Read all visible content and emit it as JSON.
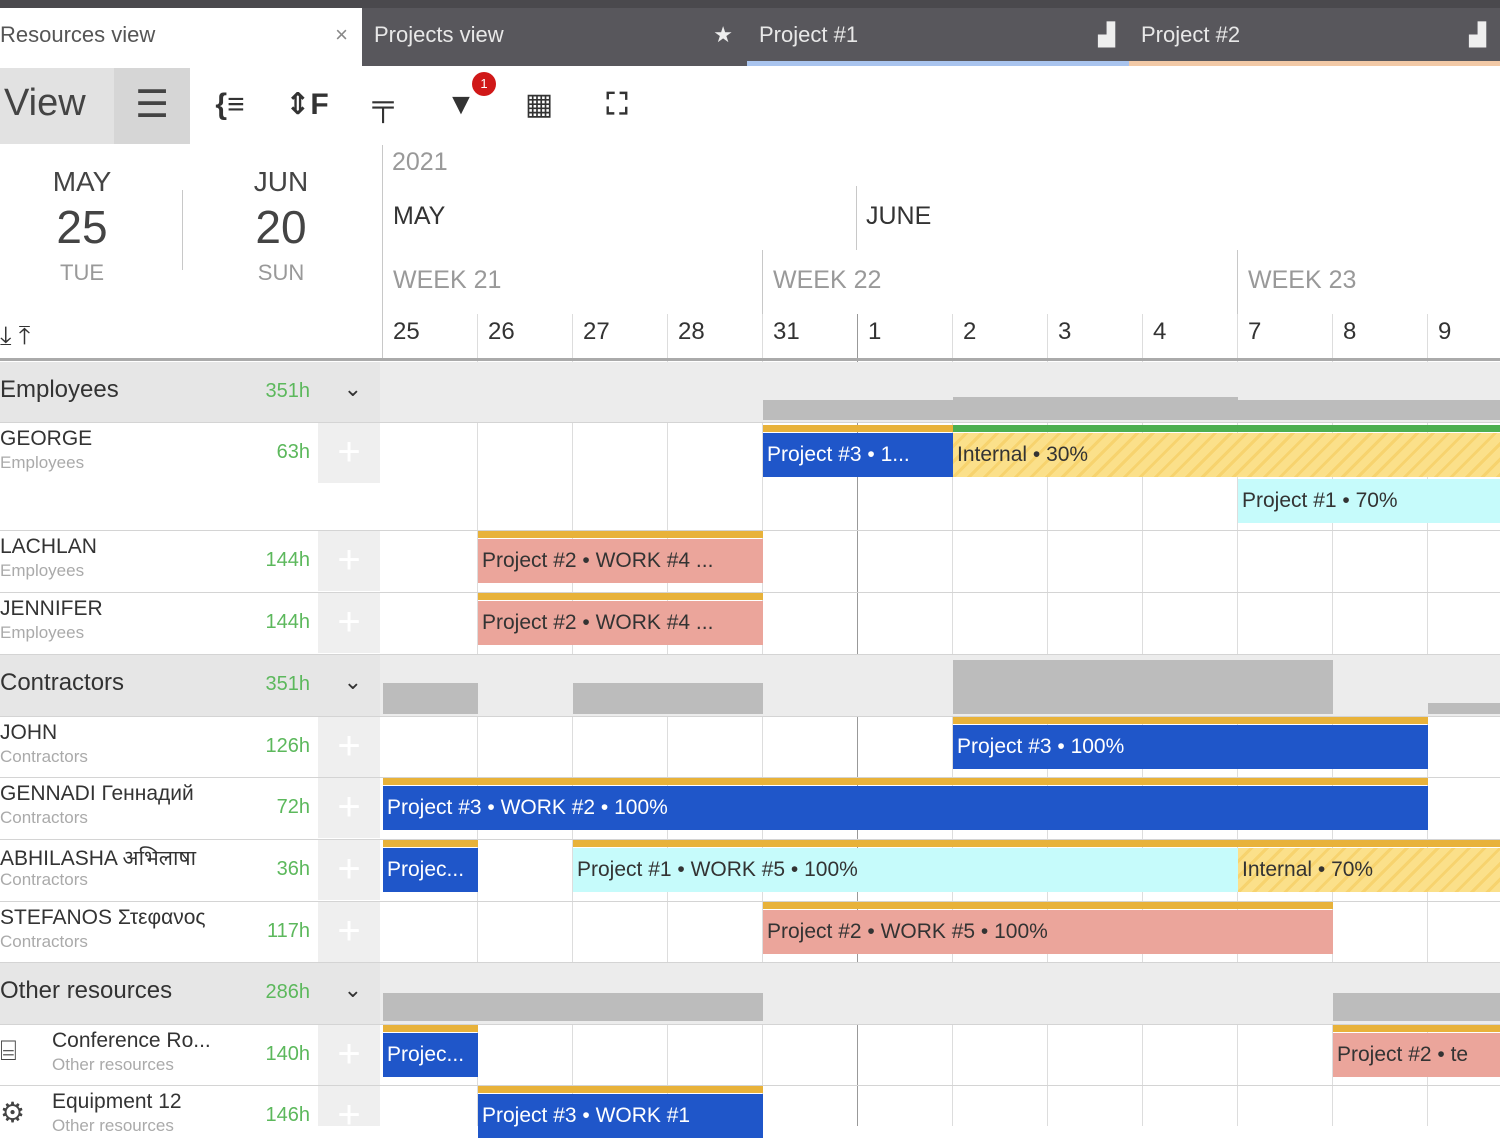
{
  "tabs": [
    {
      "label": "Resources view",
      "icon": "close-icon",
      "glyph": "×",
      "active": true,
      "accent": ""
    },
    {
      "label": "Projects view",
      "icon": "star-icon",
      "glyph": "★",
      "active": false,
      "accent": ""
    },
    {
      "label": "Project #1",
      "icon": "folder-icon",
      "glyph": "▟",
      "active": false,
      "accent": "#a9c4ee"
    },
    {
      "label": "Project #2",
      "icon": "folder-icon",
      "glyph": "▟",
      "active": false,
      "accent": "#f2c9a6"
    }
  ],
  "toolbar": {
    "view_label": "View",
    "menu_glyph": "☰",
    "filter_badge": "1",
    "icons": [
      {
        "name": "expand-tree-icon",
        "glyph": "{≡"
      },
      {
        "name": "sort-icon",
        "glyph": "⇕F"
      },
      {
        "name": "paint-roller-icon",
        "glyph": "╤"
      },
      {
        "name": "filter-icon",
        "glyph": "▼"
      },
      {
        "name": "calendar-icon",
        "glyph": "▦"
      },
      {
        "name": "fit-screen-icon",
        "glyph": "⛶"
      }
    ]
  },
  "range": {
    "from": {
      "month": "MAY",
      "day": "25",
      "weekday": "TUE"
    },
    "to": {
      "month": "JUN",
      "day": "20",
      "weekday": "SUN"
    }
  },
  "timeline": {
    "year": "2021",
    "months": [
      {
        "label": "MAY"
      },
      {
        "label": "JUNE"
      }
    ],
    "weeks": [
      "WEEK 21",
      "WEEK 22",
      "WEEK 23"
    ],
    "days": [
      "25",
      "26",
      "27",
      "28",
      "31",
      "1",
      "2",
      "3",
      "4",
      "7",
      "8",
      "9"
    ]
  },
  "colors": {
    "blue": "#1f56c9",
    "salmon": "#eba59b",
    "cyan": "#c6fbfb",
    "yellow": "#fbe08a",
    "orange": "#e8b23a",
    "green": "#4caf50",
    "hours": "#5cb85c"
  },
  "groups": [
    {
      "name": "Employees",
      "hours": "351h"
    },
    {
      "name": "Contractors",
      "hours": "351h"
    },
    {
      "name": "Other resources",
      "hours": "286h"
    }
  ],
  "resources": [
    {
      "name": "GEORGE",
      "group": "Employees",
      "hours": "63h"
    },
    {
      "name": "LACHLAN",
      "group": "Employees",
      "hours": "144h"
    },
    {
      "name": "JENNIFER",
      "group": "Employees",
      "hours": "144h"
    },
    {
      "name": "JOHN",
      "group": "Contractors",
      "hours": "126h"
    },
    {
      "name": "GENNADI Геннадий",
      "group": "Contractors",
      "hours": "72h"
    },
    {
      "name": "ABHILASHA अभिलाषा",
      "group": "Contractors",
      "hours": "36h"
    },
    {
      "name": "STEFANOS Στεφανος",
      "group": "Contractors",
      "hours": "117h"
    },
    {
      "name": "Conference Ro...",
      "group": "Other resources",
      "hours": "140h",
      "icon": "presentation-icon"
    },
    {
      "name": "Equipment 12",
      "group": "Other resources",
      "hours": "146h",
      "icon": "equipment-icon"
    }
  ],
  "bars": [
    {
      "resource": 0,
      "lane": 0,
      "start": "31",
      "end": "1",
      "label": "Project #3 • 1...",
      "color": "blue"
    },
    {
      "resource": 0,
      "lane": 0,
      "start": "2",
      "end": "9+",
      "label": "Internal • 30%",
      "color": "yellow"
    },
    {
      "resource": 0,
      "lane": 1,
      "start": "7",
      "end": "9+",
      "label": "Project #1 • 70%",
      "color": "cyan"
    },
    {
      "resource": 1,
      "lane": 0,
      "start": "26",
      "end": "28",
      "label": "Project #2 • WORK #4 ...",
      "color": "salmon"
    },
    {
      "resource": 2,
      "lane": 0,
      "start": "26",
      "end": "28",
      "label": "Project #2 • WORK #4 ...",
      "color": "salmon"
    },
    {
      "resource": 3,
      "lane": 0,
      "start": "2",
      "end": "8",
      "label": "Project #3 • 100%",
      "color": "blue"
    },
    {
      "resource": 4,
      "lane": 0,
      "start": "25",
      "end": "8",
      "label": "Project #3 • WORK #2 • 100%",
      "color": "blue"
    },
    {
      "resource": 5,
      "lane": 0,
      "start": "25",
      "end": "25",
      "label": "Projec...",
      "color": "blue"
    },
    {
      "resource": 5,
      "lane": 0,
      "start": "27",
      "end": "4",
      "label": "Project #1 • WORK #5 • 100%",
      "color": "cyan"
    },
    {
      "resource": 5,
      "lane": 0,
      "start": "7",
      "end": "9+",
      "label": "Internal • 70%",
      "color": "yellow"
    },
    {
      "resource": 6,
      "lane": 0,
      "start": "31",
      "end": "7",
      "label": "Project #2 • WORK #5 • 100%",
      "color": "salmon"
    },
    {
      "resource": 7,
      "lane": 0,
      "start": "25",
      "end": "25",
      "label": "Projec...",
      "color": "blue"
    },
    {
      "resource": 7,
      "lane": 0,
      "start": "8",
      "end": "9+",
      "label": "Project #2 • te",
      "color": "salmon"
    },
    {
      "resource": 8,
      "lane": 0,
      "start": "26",
      "end": "28",
      "label": "Project #3 • WORK #1",
      "color": "blue"
    }
  ]
}
